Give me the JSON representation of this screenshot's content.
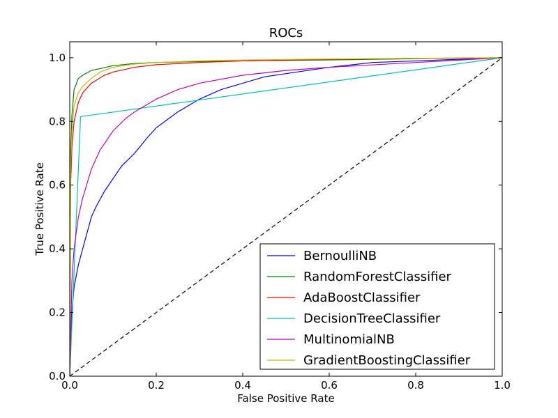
{
  "chart_data": {
    "type": "line",
    "title": "ROCs",
    "xlabel": "False Positive Rate",
    "ylabel": "True Positive Rate",
    "xlim": [
      0.0,
      1.0
    ],
    "ylim": [
      0.0,
      1.05
    ],
    "xticks": [
      "0.0",
      "0.2",
      "0.4",
      "0.6",
      "0.8",
      "1.0"
    ],
    "yticks": [
      "0.0",
      "0.2",
      "0.4",
      "0.6",
      "0.8",
      "1.0"
    ],
    "grid": false,
    "legend_position": "lower-right",
    "series": [
      {
        "name": "BernoulliNB",
        "color": "#0000ff",
        "x": [
          0,
          0.005,
          0.01,
          0.02,
          0.03,
          0.04,
          0.05,
          0.06,
          0.08,
          0.1,
          0.12,
          0.15,
          0.18,
          0.2,
          0.25,
          0.3,
          0.35,
          0.4,
          0.45,
          0.5,
          0.6,
          0.7,
          0.8,
          0.9,
          1.0
        ],
        "y": [
          0,
          0.2,
          0.28,
          0.35,
          0.4,
          0.45,
          0.5,
          0.53,
          0.58,
          0.62,
          0.66,
          0.7,
          0.75,
          0.78,
          0.83,
          0.87,
          0.9,
          0.92,
          0.94,
          0.95,
          0.97,
          0.985,
          0.99,
          0.995,
          1.0
        ]
      },
      {
        "name": "RandomForestClassifier",
        "color": "#008000",
        "x": [
          0,
          0.002,
          0.005,
          0.01,
          0.02,
          0.03,
          0.05,
          0.1,
          0.15,
          0.2,
          0.3,
          0.4,
          0.6,
          0.8,
          1.0
        ],
        "y": [
          0,
          0.7,
          0.82,
          0.9,
          0.935,
          0.945,
          0.96,
          0.975,
          0.982,
          0.985,
          0.988,
          0.99,
          0.993,
          0.997,
          1.0
        ]
      },
      {
        "name": "AdaBoostClassifier",
        "color": "#ff0000",
        "x": [
          0,
          0.002,
          0.005,
          0.01,
          0.02,
          0.03,
          0.05,
          0.08,
          0.1,
          0.15,
          0.2,
          0.3,
          0.4,
          0.6,
          0.8,
          1.0
        ],
        "y": [
          0,
          0.6,
          0.72,
          0.8,
          0.86,
          0.89,
          0.92,
          0.945,
          0.955,
          0.97,
          0.978,
          0.985,
          0.99,
          0.995,
          0.998,
          1.0
        ]
      },
      {
        "name": "DecisionTreeClassifier",
        "color": "#00bfbf",
        "x": [
          0,
          0.025,
          1.0
        ],
        "y": [
          0,
          0.815,
          1.0
        ]
      },
      {
        "name": "MultinomialNB",
        "color": "#bf00bf",
        "x": [
          0,
          0.005,
          0.01,
          0.02,
          0.03,
          0.05,
          0.07,
          0.1,
          0.13,
          0.15,
          0.2,
          0.25,
          0.3,
          0.4,
          0.5,
          0.6,
          0.8,
          1.0
        ],
        "y": [
          0,
          0.3,
          0.4,
          0.5,
          0.56,
          0.65,
          0.71,
          0.77,
          0.81,
          0.83,
          0.87,
          0.9,
          0.92,
          0.945,
          0.96,
          0.97,
          0.985,
          1.0
        ]
      },
      {
        "name": "GradientBoostingClassifier",
        "color": "#bfbf00",
        "x": [
          0,
          0.002,
          0.005,
          0.01,
          0.02,
          0.03,
          0.05,
          0.07,
          0.1,
          0.15,
          0.2,
          0.3,
          0.4,
          0.6,
          0.8,
          1.0
        ],
        "y": [
          0,
          0.65,
          0.77,
          0.85,
          0.89,
          0.91,
          0.935,
          0.955,
          0.97,
          0.98,
          0.985,
          0.99,
          0.993,
          0.996,
          0.998,
          1.0
        ]
      }
    ],
    "reference_line": {
      "x": [
        0,
        1
      ],
      "y": [
        0,
        1
      ],
      "color": "#000000",
      "style": "dashed"
    }
  }
}
